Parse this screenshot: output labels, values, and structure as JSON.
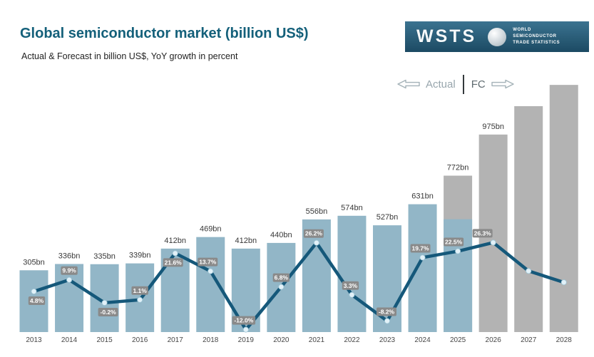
{
  "header": {
    "title": "Global semiconductor market (billion US$)",
    "subtitle": "Actual & Forecast in billion US$, YoY growth in percent"
  },
  "logo": {
    "acronym": "WSTS",
    "org_line1": "WORLD",
    "org_line2": "SEMICONDUCTOR",
    "org_line3": "TRADE STATISTICS"
  },
  "legend": {
    "actual_label": "Actual",
    "forecast_label": "FC"
  },
  "colors": {
    "title_text": "#14607a",
    "bar_actual": "#92b6c7",
    "bar_forecast": "#b3b3b3",
    "line": "#15587a",
    "marker_fill": "#e2f1f8",
    "marker_edge": "#9cc4d4",
    "pct_box": "#8a8a8a",
    "value_label": "#383838",
    "year_label": "#474747",
    "logo_bg": "#1d516d"
  },
  "chart_data": {
    "type": "bar+line combo",
    "title": "Global semiconductor market (billion US$)",
    "grid": false,
    "value_axis_visible": false,
    "legend_position": "top-right (Actual left of divider, FC right)",
    "categories": [
      "2013",
      "2014",
      "2015",
      "2016",
      "2017",
      "2018",
      "2019",
      "2020",
      "2021",
      "2022",
      "2023",
      "2024",
      "2025",
      "2026",
      "2027",
      "2028"
    ],
    "series": [
      {
        "name": "Market size",
        "unit": "billion US$",
        "chart_type": "bar",
        "values": [
          305,
          336,
          335,
          339,
          412,
          469,
          412,
          440,
          556,
          574,
          527,
          631,
          772,
          975,
          1115,
          1220
        ],
        "labels": [
          "305bn",
          "336bn",
          "335bn",
          "339bn",
          "412bn",
          "469bn",
          "412bn",
          "440bn",
          "556bn",
          "574bn",
          "527bn",
          "631bn",
          "772bn",
          "975bn",
          "",
          ""
        ],
        "segments": [
          "actual",
          "actual",
          "actual",
          "actual",
          "actual",
          "actual",
          "actual",
          "actual",
          "actual",
          "actual",
          "actual",
          "actual",
          "mixed",
          "forecast",
          "forecast",
          "forecast"
        ],
        "mixed_bar_actual_value": 557,
        "note": "2027 and 2028 bars carry no data labels; their values are estimated from bar heights"
      },
      {
        "name": "YoY growth",
        "unit": "%",
        "chart_type": "line",
        "values": [
          4.8,
          9.9,
          -0.2,
          1.1,
          21.6,
          13.7,
          -12.0,
          6.8,
          26.2,
          3.3,
          -8.2,
          19.7,
          22.5,
          26.3,
          13.8,
          8.8
        ],
        "labels": [
          "4.8%",
          "9.9%",
          "-0.2%",
          "1.1%",
          "21.6%",
          "13.7%",
          "-12.0%",
          "6.8%",
          "26.2%",
          "3.3%",
          "-8.2%",
          "19.7%",
          "22.5%",
          "26.3%",
          "",
          ""
        ],
        "label_pos": [
          "below",
          "above",
          "below",
          "above",
          "below",
          "above",
          "above",
          "above",
          "above",
          "above",
          "above",
          "above",
          "above",
          "above",
          "",
          ""
        ],
        "label_dx": [
          4,
          0,
          5,
          0,
          -3,
          -4,
          -3,
          0,
          -4,
          -2,
          -1,
          -3,
          -6,
          -15,
          0,
          0
        ],
        "note": "2027 and 2028 markers carry no growth labels; values estimated from point heights"
      }
    ]
  }
}
